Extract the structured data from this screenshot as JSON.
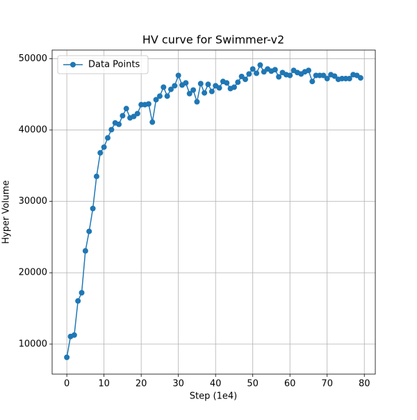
{
  "chart_data": {
    "type": "line",
    "title": "HV curve for Swimmer-v2",
    "x_label": "Step (1e4)",
    "y_label": "Hyper Volume",
    "x": [
      0,
      1,
      2,
      3,
      4,
      5,
      6,
      7,
      8,
      9,
      10,
      11,
      12,
      13,
      14,
      15,
      16,
      17,
      18,
      19,
      20,
      21,
      22,
      23,
      24,
      25,
      26,
      27,
      28,
      29,
      30,
      31,
      32,
      33,
      34,
      35,
      36,
      37,
      38,
      39,
      40,
      41,
      42,
      43,
      44,
      45,
      46,
      47,
      48,
      49,
      50,
      51,
      52,
      53,
      54,
      55,
      56,
      57,
      58,
      59,
      60,
      61,
      62,
      63,
      64,
      65,
      66,
      67,
      68,
      69,
      70,
      71,
      72,
      73,
      74,
      75,
      76,
      77,
      78,
      79
    ],
    "series": [
      {
        "name": "Data Points",
        "color": "#1f77b4",
        "values": [
          8150,
          11070,
          11270,
          16050,
          17200,
          23070,
          25800,
          29000,
          33500,
          36800,
          37600,
          38900,
          40050,
          41000,
          40800,
          42000,
          43000,
          41700,
          41900,
          42300,
          43550,
          43550,
          43650,
          41100,
          44250,
          44750,
          46000,
          44750,
          45700,
          46200,
          47650,
          46300,
          46600,
          45100,
          45600,
          43950,
          46500,
          45200,
          46400,
          45400,
          46200,
          45900,
          46800,
          46600,
          45800,
          46000,
          46700,
          47500,
          47100,
          47850,
          48550,
          47950,
          49100,
          48150,
          48550,
          48250,
          48450,
          47450,
          48050,
          47750,
          47650,
          48350,
          48050,
          47850,
          48150,
          48350,
          46800,
          47650,
          47650,
          47650,
          47200,
          47750,
          47550,
          47100,
          47200,
          47200,
          47200,
          47750,
          47650,
          47300
        ]
      }
    ],
    "xlim": [
      -3.95,
      82.95
    ],
    "ylim": [
      5800,
      51200
    ],
    "xticks": [
      0,
      10,
      20,
      30,
      40,
      50,
      60,
      70,
      80
    ],
    "yticks": [
      10000,
      20000,
      30000,
      40000,
      50000
    ],
    "grid": true,
    "legend": "upper-left"
  }
}
